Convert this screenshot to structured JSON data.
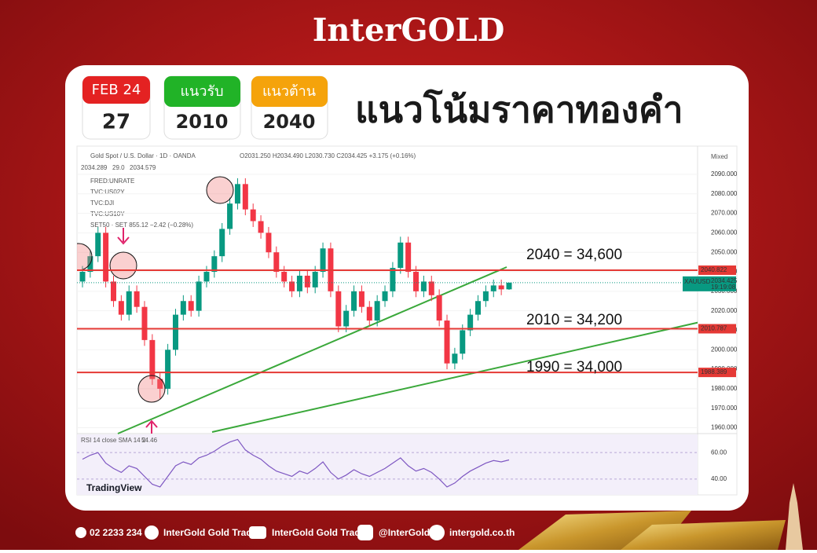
{
  "brand": "InterGOLD",
  "badges": {
    "date": {
      "label": "FEB 24",
      "value": "27"
    },
    "support": {
      "label": "แนวรับ",
      "value": "2010"
    },
    "resistance": {
      "label": "แนวต้าน",
      "value": "2040"
    }
  },
  "headline": "แนวโน้มราคาทองคำ",
  "chart_data": {
    "type": "candlestick",
    "title": "Gold Spot / U.S. Dollar · 1D · OANDA",
    "ohlc_text": "O2031.250 H2034.490 L2030.730 C2034.425 +3.175 (+0.16%)",
    "quote_boxes": [
      "2034.289",
      "29.0",
      "2034.579"
    ],
    "indicators": [
      "FRED:UNRATE",
      "TVC:US02Y",
      "TVC:DJI",
      "TVC:US10Y",
      "SET50 · SET 855.12 −2.42 (−0.28%)"
    ],
    "scale_mode": "Mixed",
    "up_color": "#089981",
    "down_color": "#f23645",
    "open": [
      2035,
      2040,
      2048,
      2060,
      2035,
      2025,
      2018,
      2030,
      2022,
      2005,
      1985,
      1980,
      2000,
      2018,
      2025,
      2020,
      2035,
      2040,
      2048,
      2062,
      2075,
      2085,
      2072,
      2066,
      2060,
      2050,
      2040,
      2035,
      2030,
      2038,
      2032,
      2040,
      2052,
      2030,
      2012,
      2020,
      2030,
      2022,
      2015,
      2025,
      2030,
      2042,
      2055,
      2040,
      2030,
      2035,
      2028,
      2015,
      1993,
      1998,
      2010,
      2018,
      2025,
      2030,
      2033,
      2031
    ],
    "high": [
      2043,
      2051,
      2063,
      2063,
      2038,
      2028,
      2033,
      2033,
      2025,
      2008,
      1988,
      2003,
      2021,
      2028,
      2028,
      2038,
      2043,
      2051,
      2065,
      2078,
      2088,
      2088,
      2075,
      2069,
      2063,
      2053,
      2043,
      2038,
      2041,
      2041,
      2043,
      2055,
      2055,
      2033,
      2023,
      2033,
      2033,
      2025,
      2028,
      2033,
      2045,
      2058,
      2058,
      2043,
      2038,
      2038,
      2031,
      2018,
      2001,
      2013,
      2021,
      2028,
      2033,
      2036,
      2036,
      2034.49
    ],
    "low": [
      2032,
      2037,
      2045,
      2032,
      2022,
      2015,
      2015,
      2019,
      2002,
      1982,
      1975,
      1977,
      1997,
      2015,
      2017,
      2017,
      2032,
      2037,
      2045,
      2059,
      2072,
      2069,
      2063,
      2057,
      2047,
      2037,
      2032,
      2027,
      2027,
      2029,
      2029,
      2037,
      2027,
      2009,
      2009,
      2017,
      2019,
      2012,
      2012,
      2022,
      2027,
      2039,
      2037,
      2027,
      2027,
      2025,
      2012,
      1990,
      1990,
      1995,
      2007,
      2015,
      2022,
      2027,
      2028,
      2030.73
    ],
    "close": [
      2040,
      2048,
      2060,
      2035,
      2025,
      2018,
      2030,
      2022,
      2005,
      1985,
      1980,
      2000,
      2018,
      2025,
      2020,
      2035,
      2040,
      2048,
      2062,
      2075,
      2085,
      2072,
      2066,
      2060,
      2050,
      2040,
      2035,
      2030,
      2038,
      2032,
      2040,
      2052,
      2030,
      2012,
      2020,
      2030,
      2022,
      2015,
      2025,
      2030,
      2042,
      2055,
      2040,
      2030,
      2035,
      2028,
      2015,
      1993,
      1998,
      2010,
      2018,
      2025,
      2030,
      2033,
      2031,
      2034.425
    ],
    "ylim": [
      1957,
      2094
    ],
    "yticks": [
      {
        "value": 1960,
        "label": "1960.000"
      },
      {
        "value": 1970,
        "label": "1970.000"
      },
      {
        "value": 1980,
        "label": "1980.000"
      },
      {
        "value": 1990,
        "label": "1990.000"
      },
      {
        "value": 2000,
        "label": "2000.000"
      },
      {
        "value": 2010,
        "label": "2010.000"
      },
      {
        "value": 2020,
        "label": "2020.000"
      },
      {
        "value": 2030,
        "label": "2030.000"
      },
      {
        "value": 2040,
        "label": "2040.000"
      },
      {
        "value": 2050,
        "label": "2050.000"
      },
      {
        "value": 2060,
        "label": "2060.000"
      },
      {
        "value": 2070,
        "label": "2070.000"
      },
      {
        "value": 2080,
        "label": "2080.000"
      },
      {
        "value": 2090,
        "label": "2090.000"
      }
    ],
    "levels": [
      2040.822,
      2010.787,
      1988.389
    ],
    "level_color": "#e53935",
    "last_price": {
      "symbol": "XAUUSD",
      "value": 2034.425,
      "time": "19:19:08"
    },
    "annotations": [
      "2040 = 34,600",
      "2010 = 34,200",
      "1990 = 34,000"
    ],
    "rsi": {
      "name": "RSI 14 close SMA 14 2",
      "color": "#7e57c2",
      "values": [
        55,
        58,
        60,
        52,
        48,
        45,
        50,
        48,
        42,
        36,
        34,
        42,
        50,
        53,
        51,
        56,
        58,
        61,
        65,
        68,
        70,
        62,
        58,
        55,
        50,
        46,
        44,
        42,
        46,
        44,
        48,
        53,
        45,
        40,
        43,
        47,
        44,
        42,
        45,
        48,
        52,
        56,
        50,
        46,
        48,
        45,
        40,
        34,
        37,
        42,
        46,
        49,
        52,
        54,
        53,
        54.46
      ],
      "ylim": [
        28,
        72
      ],
      "yticks": [
        {
          "value": 60,
          "label": "60.00"
        },
        {
          "value": 40,
          "label": "40.00"
        }
      ]
    },
    "watermark": "TradingView"
  },
  "footer": {
    "phone": "02 2233 234",
    "facebook": "InterGold Gold Trade",
    "youtube": "InterGold Gold Trade",
    "line": "@InterGold",
    "web": "intergold.co.th"
  }
}
